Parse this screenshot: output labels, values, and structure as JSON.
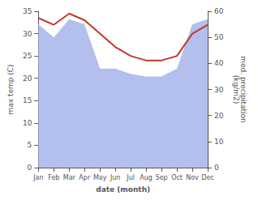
{
  "chart_data": {
    "type": "line",
    "categories": [
      "Jan",
      "Feb",
      "Mar",
      "Apr",
      "May",
      "Jun",
      "Jul",
      "Aug",
      "Sep",
      "Oct",
      "Nov",
      "Dec"
    ],
    "series": [
      {
        "type": "area",
        "color": "#b3bfec",
        "axis": "y2",
        "values": [
          55,
          50,
          57,
          55,
          38,
          38,
          36,
          35,
          35,
          38,
          55,
          57
        ]
      },
      {
        "type": "line",
        "color": "#c0392b",
        "values": [
          33.5,
          32.0,
          34.5,
          33.0,
          30.0,
          27.0,
          25.0,
          24.0,
          24.0,
          25.0,
          30.0,
          32.0
        ]
      }
    ],
    "xlabel": "date (month)",
    "ylabel": "max temp (C)",
    "y2label": "med. precipitation\n(kg/m2)",
    "ylim": [
      0,
      35
    ],
    "yticks": [
      0,
      5,
      10,
      15,
      20,
      25,
      30,
      35
    ],
    "y2lim": [
      0,
      60
    ],
    "y2ticks": [
      0,
      10,
      20,
      30,
      40,
      50,
      60
    ],
    "grid": false
  }
}
